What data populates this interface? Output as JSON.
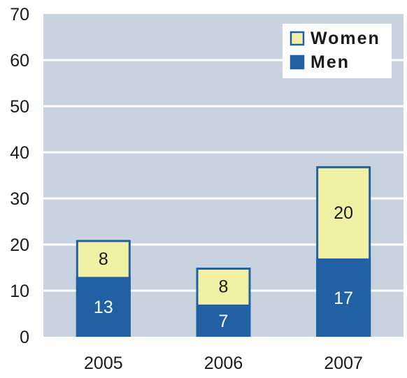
{
  "chart_data": {
    "type": "bar",
    "stacked": true,
    "categories": [
      "2005",
      "2006",
      "2007"
    ],
    "series": [
      {
        "name": "Men",
        "values": [
          13,
          7,
          17
        ],
        "color": "#2161a3",
        "label_color": "#ffffff"
      },
      {
        "name": "Women",
        "values": [
          8,
          8,
          20
        ],
        "color": "#f1f1a6",
        "label_color": "#1a1a1a"
      }
    ],
    "ylim": [
      0,
      70
    ],
    "yticks": [
      0,
      10,
      20,
      30,
      40,
      50,
      60,
      70
    ],
    "grid": true,
    "legend_position": "top-right",
    "legend_order": [
      "Women",
      "Men"
    ],
    "plot_background": "#c8d3df",
    "gridline_color": "#ffffff",
    "bar_outline_color": "#2161a3"
  }
}
